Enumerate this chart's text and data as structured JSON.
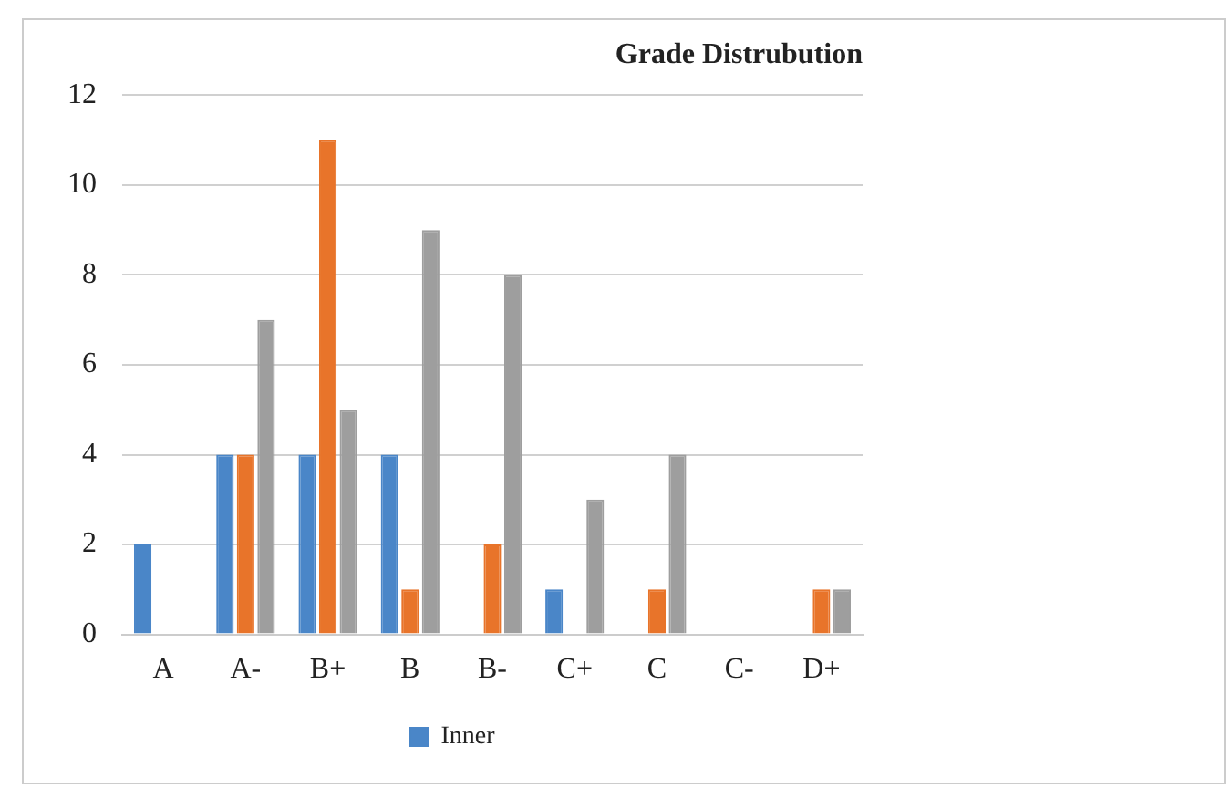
{
  "chart_data": {
    "type": "bar",
    "title": "Grade Distrubution",
    "categories": [
      "A",
      "A-",
      "B+",
      "B",
      "B-",
      "C+",
      "C",
      "C-",
      "D+"
    ],
    "series": [
      {
        "name": "Inner",
        "color": "#4a86c8",
        "values": [
          2,
          4,
          4,
          4,
          0,
          1,
          0,
          0,
          0
        ]
      },
      {
        "color": "#e8742a",
        "values": [
          0,
          4,
          11,
          1,
          2,
          0,
          1,
          0,
          1
        ]
      },
      {
        "color": "#9e9e9e",
        "values": [
          0,
          7,
          5,
          9,
          8,
          3,
          4,
          0,
          1
        ]
      }
    ],
    "ylim": [
      0,
      12
    ],
    "yticks": [
      0,
      2,
      4,
      6,
      8,
      10,
      12
    ],
    "grid": "y",
    "legend": "bottom"
  }
}
